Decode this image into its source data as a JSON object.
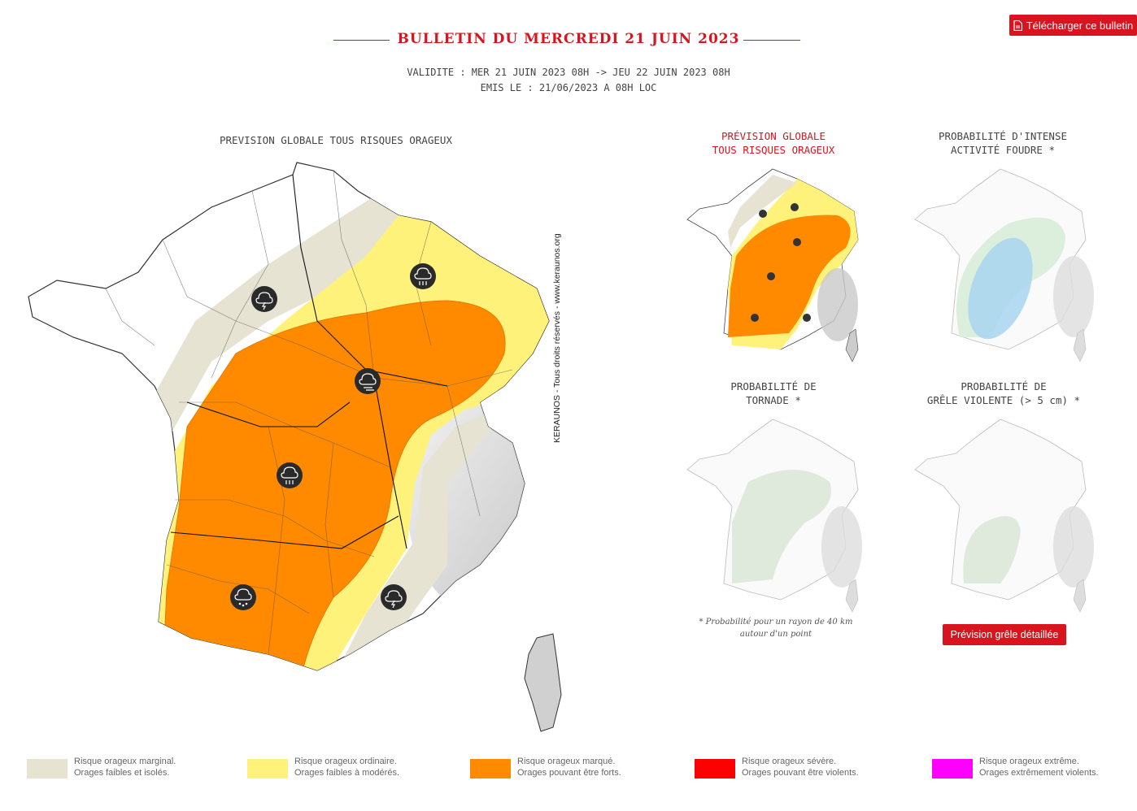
{
  "download_button": {
    "label": "Télécharger ce bulletin",
    "icon": "pdf-icon"
  },
  "bulletin": {
    "title": "BULLETIN DU MERCREDI 21 JUIN 2023",
    "validity": "VALIDITE : MER 21 JUIN 2023 08H -> JEU 22 JUIN 2023 08H",
    "issued": "EMIS LE : 21/06/2023 A 08H LOC"
  },
  "main_map": {
    "title": "PREVISION GLOBALE TOUS RISQUES ORAGEUX",
    "watermark": "KERAUNOS - Tous droits réservés - www.keraunos.org",
    "icons": [
      "thunder-rain-icon",
      "heavy-rain-icon",
      "wind-icon",
      "heavy-rain-icon",
      "hail-icon",
      "thunder-rain-icon"
    ]
  },
  "small_maps": [
    {
      "title_line1": "PRÉVISION GLOBALE",
      "title_line2": "TOUS RISQUES ORAGEUX",
      "active": true
    },
    {
      "title_line1": "PROBABILITÉ D'INTENSE",
      "title_line2": "ACTIVITÉ FOUDRE *",
      "active": false
    },
    {
      "title_line1": "PROBABILITÉ DE",
      "title_line2": "TORNADE *",
      "active": false
    },
    {
      "title_line1": "PROBABILITÉ DE",
      "title_line2": "GRÊLE VIOLENTE (> 5 cm) *",
      "active": false
    }
  ],
  "footnote": {
    "line1": "* Probabilité pour un rayon de 40 km",
    "line2": "autour d'un point"
  },
  "hail_button": {
    "label": "Prévision grêle détaillée"
  },
  "legend": [
    {
      "line1": "Risque orageux marginal.",
      "line2": "Orages faibles et isolés.",
      "color": "#e6e3d3"
    },
    {
      "line1": "Risque orageux ordinaire.",
      "line2": "Orages faibles à modérés.",
      "color": "#fff27a"
    },
    {
      "line1": "Risque orageux marqué.",
      "line2": "Orages pouvant être forts.",
      "color": "#ff8a00"
    },
    {
      "line1": "Risque orageux sévère.",
      "line2": "Orages pouvant être violents.",
      "color": "#ff0000"
    },
    {
      "line1": "Risque orageux extrême.",
      "line2": "Orages extrêmement violents.",
      "color": "#ff00ff"
    }
  ]
}
